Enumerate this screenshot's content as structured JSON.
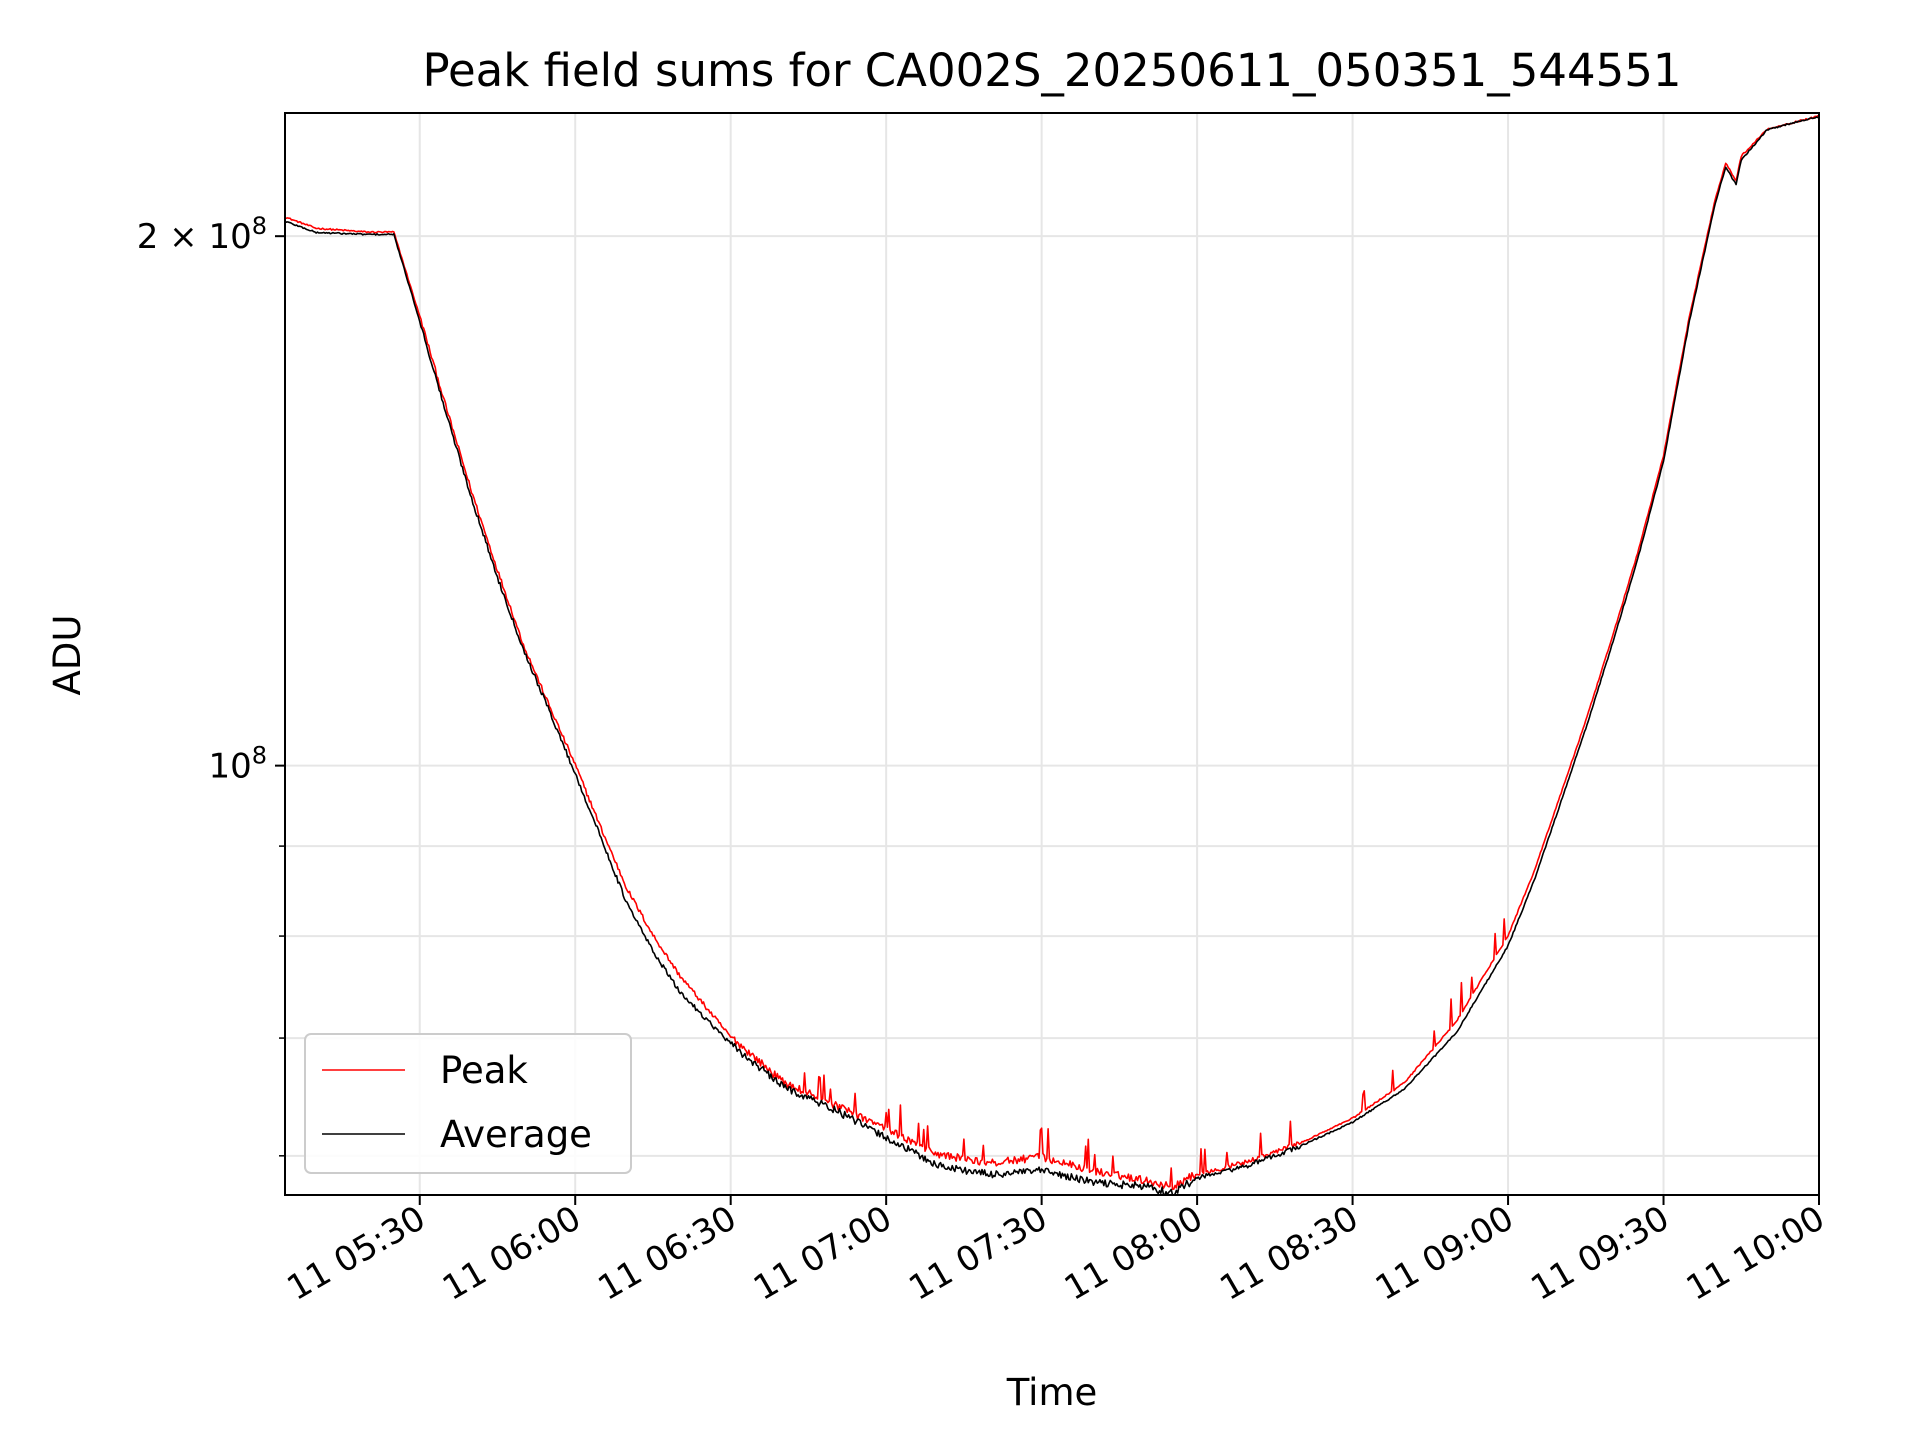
{
  "chart_data": {
    "type": "line",
    "title": "Peak field sums for CA002S_20250611_050351_544551",
    "xlabel": "Time",
    "ylabel": "ADU",
    "y_scale": "log",
    "ylim": [
      57000000,
      235000000
    ],
    "xlim": [
      "2025-06-11 05:04",
      "2025-06-11 10:00"
    ],
    "grid": true,
    "legend": {
      "position": "lower-left",
      "entries": [
        "Peak",
        "Average"
      ]
    },
    "x_ticks": [
      "11 05:30",
      "11 06:00",
      "11 06:30",
      "11 07:00",
      "11 07:30",
      "11 08:00",
      "11 08:30",
      "11 09:00",
      "11 09:30",
      "11 10:00"
    ],
    "y_tick_labels": [
      "2 × 10⁸",
      "10⁸"
    ],
    "y_tick_values": [
      200000000,
      100000000
    ],
    "y_minor_ticks": [
      60000000,
      70000000,
      80000000,
      90000000
    ],
    "series": [
      {
        "name": "Peak",
        "color": "#ff0000",
        "x": [
          "2025-06-11 05:04",
          "2025-06-11 05:10",
          "2025-06-11 05:20",
          "2025-06-11 05:25",
          "2025-06-11 05:30",
          "2025-06-11 05:35",
          "2025-06-11 05:40",
          "2025-06-11 05:45",
          "2025-06-11 05:50",
          "2025-06-11 05:55",
          "2025-06-11 06:00",
          "2025-06-11 06:05",
          "2025-06-11 06:10",
          "2025-06-11 06:15",
          "2025-06-11 06:20",
          "2025-06-11 06:30",
          "2025-06-11 06:40",
          "2025-06-11 06:50",
          "2025-06-11 07:00",
          "2025-06-11 07:10",
          "2025-06-11 07:20",
          "2025-06-11 07:30",
          "2025-06-11 07:40",
          "2025-06-11 07:50",
          "2025-06-11 07:55",
          "2025-06-11 08:00",
          "2025-06-11 08:10",
          "2025-06-11 08:20",
          "2025-06-11 08:30",
          "2025-06-11 08:40",
          "2025-06-11 08:50",
          "2025-06-11 09:00",
          "2025-06-11 09:05",
          "2025-06-11 09:10",
          "2025-06-11 09:15",
          "2025-06-11 09:20",
          "2025-06-11 09:25",
          "2025-06-11 09:30",
          "2025-06-11 09:35",
          "2025-06-11 09:40",
          "2025-06-11 09:42",
          "2025-06-11 09:44",
          "2025-06-11 09:45",
          "2025-06-11 09:50",
          "2025-06-11 10:00"
        ],
        "y": [
          205000000,
          202000000,
          201000000,
          201000000,
          180000000,
          160000000,
          143000000,
          129000000,
          117000000,
          108000000,
          100000000,
          92000000,
          85000000,
          80000000,
          76000000,
          70000000,
          66000000,
          64000000,
          62000000,
          60000000,
          59300000,
          59800000,
          58700000,
          58000000,
          57500000,
          58500000,
          59500000,
          61000000,
          63000000,
          66000000,
          71500000,
          80000000,
          87000000,
          96000000,
          106000000,
          118000000,
          132000000,
          150000000,
          180000000,
          210000000,
          220000000,
          215000000,
          222000000,
          230000000,
          234000000
        ]
      },
      {
        "name": "Average",
        "color": "#000000",
        "x": [
          "2025-06-11 05:04",
          "2025-06-11 05:10",
          "2025-06-11 05:20",
          "2025-06-11 05:25",
          "2025-06-11 05:30",
          "2025-06-11 05:35",
          "2025-06-11 05:40",
          "2025-06-11 05:45",
          "2025-06-11 05:50",
          "2025-06-11 05:55",
          "2025-06-11 06:00",
          "2025-06-11 06:05",
          "2025-06-11 06:10",
          "2025-06-11 06:15",
          "2025-06-11 06:20",
          "2025-06-11 06:30",
          "2025-06-11 06:40",
          "2025-06-11 06:50",
          "2025-06-11 07:00",
          "2025-06-11 07:10",
          "2025-06-11 07:20",
          "2025-06-11 07:30",
          "2025-06-11 07:40",
          "2025-06-11 07:50",
          "2025-06-11 07:55",
          "2025-06-11 08:00",
          "2025-06-11 08:10",
          "2025-06-11 08:20",
          "2025-06-11 08:30",
          "2025-06-11 08:40",
          "2025-06-11 08:50",
          "2025-06-11 09:00",
          "2025-06-11 09:05",
          "2025-06-11 09:10",
          "2025-06-11 09:15",
          "2025-06-11 09:20",
          "2025-06-11 09:25",
          "2025-06-11 09:30",
          "2025-06-11 09:35",
          "2025-06-11 09:40",
          "2025-06-11 09:42",
          "2025-06-11 09:44",
          "2025-06-11 09:45",
          "2025-06-11 09:50",
          "2025-06-11 10:00"
        ],
        "y": [
          204000000,
          201000000,
          200500000,
          200500000,
          179000000,
          159000000,
          142000000,
          128000000,
          116500000,
          107500000,
          99000000,
          91000000,
          83500000,
          78500000,
          74500000,
          69500000,
          65800000,
          63800000,
          61500000,
          59300000,
          58600000,
          58900000,
          58000000,
          57700000,
          57200000,
          58300000,
          59300000,
          60800000,
          62700000,
          65500000,
          70500000,
          79000000,
          86000000,
          95000000,
          105000000,
          117000000,
          131000000,
          149000000,
          179000000,
          209000000,
          219000000,
          214000000,
          221000000,
          230000000,
          234000000
        ]
      }
    ]
  }
}
